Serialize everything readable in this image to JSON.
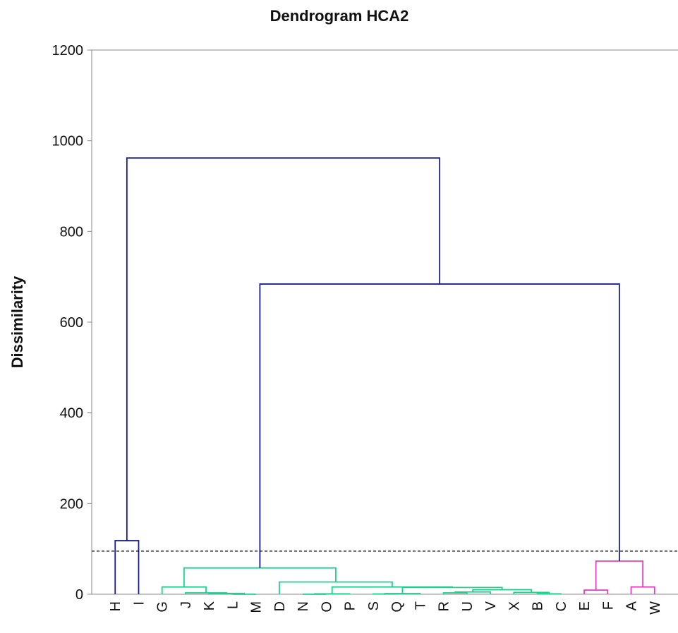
{
  "chart_data": {
    "type": "dendrogram",
    "title": "Dendrogram HCA2",
    "y_label": "Dissimilarity",
    "leaves": [
      "H",
      "I",
      "G",
      "J",
      "K",
      "L",
      "M",
      "D",
      "N",
      "O",
      "P",
      "S",
      "Q",
      "T",
      "R",
      "U",
      "V",
      "X",
      "B",
      "C",
      "E",
      "F",
      "A",
      "W"
    ],
    "merges": [
      {
        "children": [
          0,
          1
        ],
        "height": 118,
        "color": "#1a1f8c"
      },
      {
        "children": [
          5,
          6
        ],
        "height": 0,
        "color": "#1fd08f"
      },
      {
        "children": [
          4,
          25
        ],
        "height": 2,
        "color": "#1fd08f"
      },
      {
        "children": [
          3,
          26
        ],
        "height": 3,
        "color": "#1fd08f"
      },
      {
        "children": [
          2,
          27
        ],
        "height": 16,
        "color": "#1fd08f"
      },
      {
        "children": [
          8,
          9
        ],
        "height": 0,
        "color": "#1fd08f"
      },
      {
        "children": [
          29,
          10
        ],
        "height": 1,
        "color": "#1fd08f"
      },
      {
        "children": [
          11,
          12
        ],
        "height": 0.5,
        "color": "#1fd08f"
      },
      {
        "children": [
          31,
          13
        ],
        "height": 1.5,
        "color": "#1fd08f"
      },
      {
        "children": [
          14,
          15
        ],
        "height": 3,
        "color": "#1fd08f"
      },
      {
        "children": [
          33,
          16
        ],
        "height": 5,
        "color": "#1fd08f"
      },
      {
        "children": [
          18,
          19
        ],
        "height": 1,
        "color": "#1fd08f"
      },
      {
        "children": [
          17,
          35
        ],
        "height": 4,
        "color": "#1fd08f"
      },
      {
        "children": [
          34,
          36
        ],
        "height": 10,
        "color": "#1fd08f"
      },
      {
        "children": [
          32,
          37
        ],
        "height": 15,
        "color": "#1fd08f"
      },
      {
        "children": [
          30,
          38
        ],
        "height": 16,
        "color": "#1fd08f"
      },
      {
        "children": [
          7,
          39
        ],
        "height": 27,
        "color": "#1fd08f"
      },
      {
        "children": [
          28,
          40
        ],
        "height": 58,
        "color": "#1fd08f"
      },
      {
        "children": [
          20,
          21
        ],
        "height": 9,
        "color": "#e040c0"
      },
      {
        "children": [
          22,
          23
        ],
        "height": 16,
        "color": "#e040c0"
      },
      {
        "children": [
          42,
          43
        ],
        "height": 73,
        "color": "#e040c0"
      },
      {
        "children": [
          41,
          44
        ],
        "height": 684,
        "color": "#1a1f8c"
      },
      {
        "children": [
          24,
          45
        ],
        "height": 962,
        "color": "#1a1f8c"
      }
    ],
    "cutoff": 95,
    "ylim": [
      0,
      1200
    ],
    "yticks": [
      0,
      200,
      400,
      600,
      800,
      1000,
      1200
    ]
  }
}
